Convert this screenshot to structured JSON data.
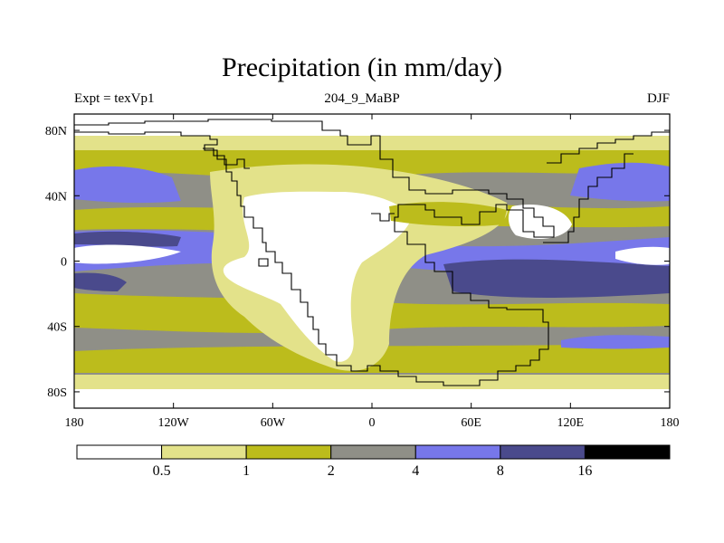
{
  "chart_data": {
    "type": "heatmap",
    "title": "Precipitation (in mm/day)",
    "subtitle_left": "Expt = texVp1",
    "subtitle_center": "204_9_MaBP",
    "subtitle_right": "DJF",
    "x_range": [
      -180,
      180
    ],
    "y_range": [
      -90,
      90
    ],
    "x_ticks": [
      {
        "value": -180,
        "label": "180"
      },
      {
        "value": -120,
        "label": "120W"
      },
      {
        "value": -60,
        "label": "60W"
      },
      {
        "value": 0,
        "label": "0"
      },
      {
        "value": 60,
        "label": "60E"
      },
      {
        "value": 120,
        "label": "120E"
      },
      {
        "value": 180,
        "label": "180"
      }
    ],
    "y_ticks": [
      {
        "value": 80,
        "label": "80N"
      },
      {
        "value": 40,
        "label": "40N"
      },
      {
        "value": 0,
        "label": "0"
      },
      {
        "value": -40,
        "label": "40S"
      },
      {
        "value": -80,
        "label": "80S"
      }
    ],
    "colorbar": {
      "labels": [
        "0.5",
        "1",
        "2",
        "4",
        "8",
        "16"
      ],
      "colors": [
        "#ffffff",
        "#e3e28a",
        "#bcbc1c",
        "#8f8f87",
        "#7777ea",
        "#4a4a8c",
        "#000000"
      ]
    }
  }
}
